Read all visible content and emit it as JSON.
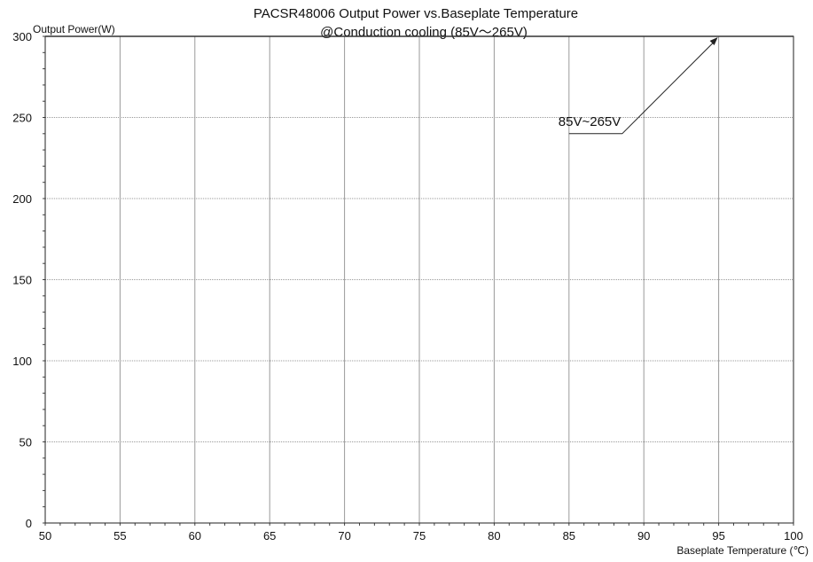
{
  "chart_data": {
    "type": "line",
    "title": "PACSR48006  Output Power vs.Baseplate  Temperature",
    "subtitle": "@Conduction cooling (85V～265V)",
    "xlabel": "Baseplate Temperature (℃)",
    "ylabel": "Output Power(W)",
    "xlim": [
      50,
      100
    ],
    "ylim": [
      0,
      300
    ],
    "x_ticks": [
      50,
      55,
      60,
      65,
      70,
      75,
      80,
      85,
      90,
      95,
      100
    ],
    "y_ticks": [
      0,
      50,
      100,
      150,
      200,
      250,
      300
    ],
    "grid": true,
    "series": [
      {
        "name": "85V~265V",
        "x": [
          50,
          100
        ],
        "y": [
          300,
          300
        ],
        "color": "#333333"
      }
    ],
    "annotations": [
      {
        "text": "85V~265V",
        "target_x": 95,
        "target_y": 300,
        "text_x": 85,
        "text_y": 240
      }
    ]
  }
}
